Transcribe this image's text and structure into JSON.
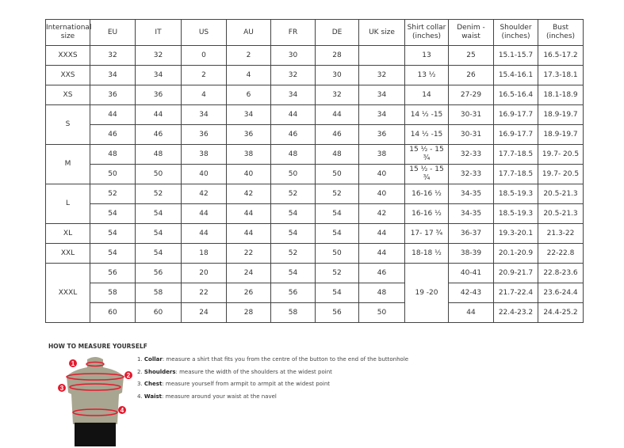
{
  "headers": [
    "International size",
    "EU",
    "IT",
    "US",
    "AU",
    "FR",
    "DE",
    "UK size",
    "Shirt collar (inches)",
    "Denim - waist",
    "Shoulder (inches)",
    "Bust (inches)"
  ],
  "groups": [
    {
      "size": "XXXS",
      "rows": [
        [
          "32",
          "32",
          "0",
          "2",
          "30",
          "28",
          "",
          "13",
          "25",
          "15.1-15.7",
          "16.5-17.2"
        ]
      ]
    },
    {
      "size": "XXS",
      "rows": [
        [
          "34",
          "34",
          "2",
          "4",
          "32",
          "30",
          "32",
          "13 ½",
          "26",
          "15.4-16.1",
          "17.3-18.1"
        ]
      ]
    },
    {
      "size": "XS",
      "rows": [
        [
          "36",
          "36",
          "4",
          "6",
          "34",
          "32",
          "34",
          "14",
          "27-29",
          "16.5-16.4",
          "18.1-18.9"
        ]
      ]
    },
    {
      "size": "S",
      "rows": [
        [
          "44",
          "44",
          "34",
          "34",
          "44",
          "44",
          "34",
          "14 ½ -15",
          "30-31",
          "16.9-17.7",
          "18.9-19.7"
        ],
        [
          "46",
          "46",
          "36",
          "36",
          "46",
          "46",
          "36",
          "14 ½ -15",
          "30-31",
          "16.9-17.7",
          "18.9-19.7"
        ]
      ]
    },
    {
      "size": "M",
      "rows": [
        [
          "48",
          "48",
          "38",
          "38",
          "48",
          "48",
          "38",
          "15 ½ - 15 ¾",
          "32-33",
          "17.7-18.5",
          "19.7- 20.5"
        ],
        [
          "50",
          "50",
          "40",
          "40",
          "50",
          "50",
          "40",
          "15 ½ - 15 ¾",
          "32-33",
          "17.7-18.5",
          "19.7- 20.5"
        ]
      ]
    },
    {
      "size": "L",
      "rows": [
        [
          "52",
          "52",
          "42",
          "42",
          "52",
          "52",
          "40",
          "16-16 ½",
          "34-35",
          "18.5-19.3",
          "20.5-21.3"
        ],
        [
          "54",
          "54",
          "44",
          "44",
          "54",
          "54",
          "42",
          "16-16 ½",
          "34-35",
          "18.5-19.3",
          "20.5-21.3"
        ]
      ]
    },
    {
      "size": "XL",
      "rows": [
        [
          "54",
          "54",
          "44",
          "44",
          "54",
          "54",
          "44",
          "17- 17 ¾",
          "36-37",
          "19.3-20.1",
          "21.3-22"
        ]
      ]
    },
    {
      "size": "XXL",
      "rows": [
        [
          "54",
          "54",
          "18",
          "22",
          "52",
          "50",
          "44",
          "18-18 ½",
          "38-39",
          "20.1-20.9",
          "22-22.8"
        ]
      ]
    },
    {
      "size": "XXXL",
      "collar": "19 -20",
      "rows": [
        [
          "56",
          "56",
          "20",
          "24",
          "54",
          "52",
          "46",
          "40-41",
          "20.9-21.7",
          "22.8-23.6"
        ],
        [
          "58",
          "58",
          "22",
          "26",
          "56",
          "54",
          "48",
          "42-43",
          "21.7-22.4",
          "23.6-24.4"
        ],
        [
          "60",
          "60",
          "24",
          "28",
          "58",
          "56",
          "50",
          "44",
          "22.4-23.2",
          "24.4-25.2"
        ]
      ]
    }
  ],
  "howto": {
    "title": "HOW TO MEASURE YOURSELF",
    "steps": [
      {
        "num": "1.",
        "term": "Collar",
        "text": ": measure a shirt that fits you from the centre of the button to the end of the buttonhole"
      },
      {
        "num": "2.",
        "term": "Shoulders",
        "text": ": measure the width of the shoulders at the widest point"
      },
      {
        "num": "3.",
        "term": "Chest",
        "text": ": measure yourself from armpit to armpit at the widest point"
      },
      {
        "num": "4.",
        "term": "Waist",
        "text": ": measure around your waist at the navel"
      }
    ],
    "markers": [
      "1",
      "2",
      "3",
      "4"
    ],
    "accent": "#e3192d"
  }
}
